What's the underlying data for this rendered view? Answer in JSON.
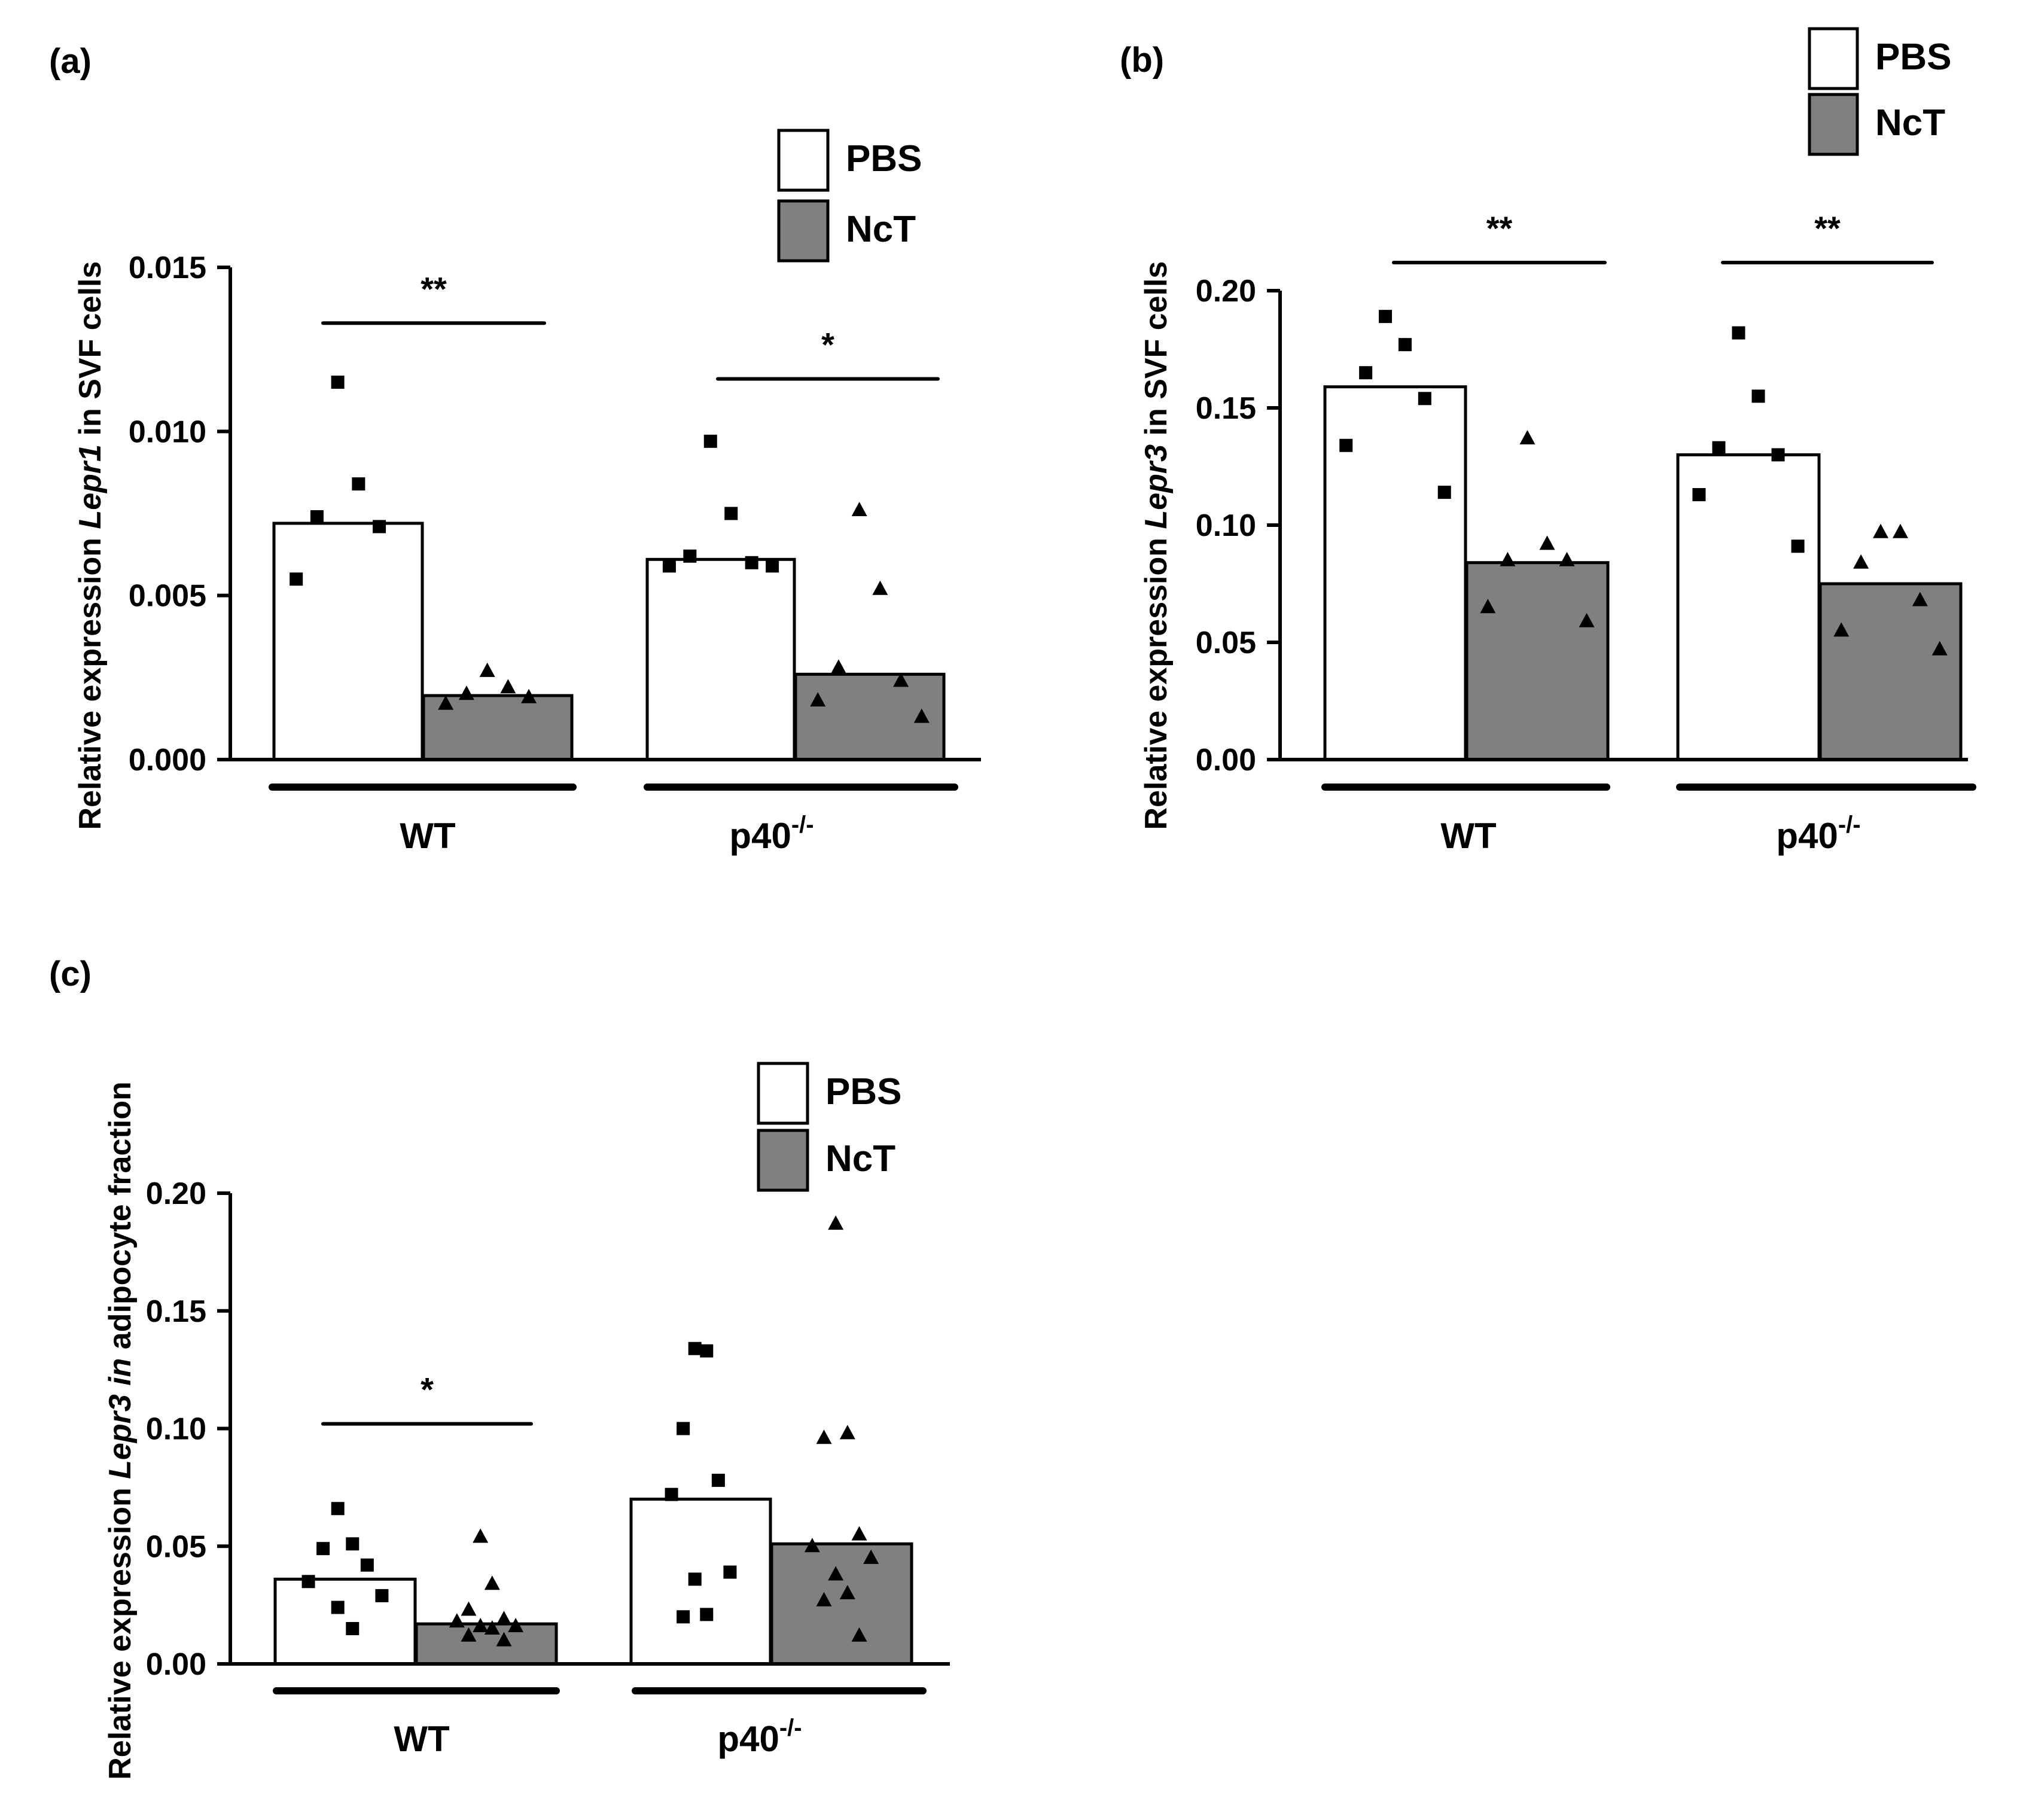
{
  "colors": {
    "PBS": "#ffffff",
    "NcT": "#808080",
    "ink": "#000000"
  },
  "legend": {
    "pbs": "PBS",
    "nct": "NcT"
  },
  "chart_data": [
    {
      "id": "a",
      "panel_label": "(a)",
      "type": "bar",
      "ylabel": {
        "prefix": "Relative expression ",
        "gene": "Lepr1",
        "suffix": " in SVF cells"
      },
      "ylim": [
        0,
        0.015
      ],
      "yticks": [
        "0.000",
        "0.005",
        "0.010",
        "0.015"
      ],
      "groups": [
        {
          "label": "WT",
          "sup": ""
        },
        {
          "label": "p40",
          "sup": "-/-"
        }
      ],
      "series": [
        {
          "name": "PBS",
          "marker": "square",
          "means": [
            0.0072,
            0.0061
          ],
          "points": [
            [
              0.0115,
              0.0084,
              0.0074,
              0.0071,
              0.0055
            ],
            [
              0.0097,
              0.0075,
              0.0062,
              0.006,
              0.0059,
              0.0059
            ]
          ]
        },
        {
          "name": "NcT",
          "marker": "triangle",
          "means": [
            0.00195,
            0.0026
          ],
          "points": [
            [
              0.0027,
              0.0022,
              0.002,
              0.0019,
              0.0017
            ],
            [
              0.0076,
              0.0052,
              0.0028,
              0.0024,
              0.0018,
              0.0013
            ]
          ]
        }
      ],
      "significance": [
        {
          "group_index": 0,
          "stars": "**",
          "y": 0.0133
        },
        {
          "group_index": 1,
          "stars": "*",
          "y": 0.0116
        }
      ]
    },
    {
      "id": "b",
      "panel_label": "(b)",
      "type": "bar",
      "ylabel": {
        "prefix": "Relative expression ",
        "gene": "Lepr3",
        "suffix": " in SVF cells"
      },
      "ylim": [
        0,
        0.2
      ],
      "yticks": [
        "0.00",
        "0.05",
        "0.10",
        "0.15",
        "0.20"
      ],
      "groups": [
        {
          "label": "WT",
          "sup": ""
        },
        {
          "label": "p40",
          "sup": "-/-"
        }
      ],
      "series": [
        {
          "name": "PBS",
          "marker": "square",
          "means": [
            0.159,
            0.13
          ],
          "points": [
            [
              0.189,
              0.177,
              0.165,
              0.154,
              0.134,
              0.114
            ],
            [
              0.182,
              0.155,
              0.133,
              0.13,
              0.113,
              0.091
            ]
          ]
        },
        {
          "name": "NcT",
          "marker": "triangle",
          "means": [
            0.084,
            0.075
          ],
          "points": [
            [
              0.137,
              0.092,
              0.085,
              0.085,
              0.065,
              0.059
            ],
            [
              0.097,
              0.097,
              0.084,
              0.068,
              0.055,
              0.047
            ]
          ]
        }
      ],
      "significance": [
        {
          "group_index": 0,
          "stars": "**",
          "y": 0.212
        },
        {
          "group_index": 1,
          "stars": "**",
          "y": 0.212
        }
      ]
    },
    {
      "id": "c",
      "panel_label": "(c)",
      "type": "bar",
      "ylabel": {
        "prefix": "Relative expression ",
        "gene": "Lepr3 in",
        "suffix": " adipocyte fraction"
      },
      "ylim": [
        0,
        0.2
      ],
      "yticks": [
        "0.00",
        "0.05",
        "0.10",
        "0.15",
        "0.20"
      ],
      "groups": [
        {
          "label": "WT",
          "sup": ""
        },
        {
          "label": "p40",
          "sup": "-/-"
        }
      ],
      "series": [
        {
          "name": "PBS",
          "marker": "square",
          "means": [
            0.036,
            0.07
          ],
          "points": [
            [
              0.066,
              0.051,
              0.049,
              0.042,
              0.035,
              0.029,
              0.024,
              0.015
            ],
            [
              0.134,
              0.133,
              0.1,
              0.078,
              0.072,
              0.039,
              0.036,
              0.021,
              0.02
            ]
          ]
        },
        {
          "name": "NcT",
          "marker": "triangle",
          "means": [
            0.017,
            0.051
          ],
          "points": [
            [
              0.054,
              0.034,
              0.023,
              0.019,
              0.018,
              0.016,
              0.016,
              0.015,
              0.012,
              0.01
            ],
            [
              0.187,
              0.098,
              0.096,
              0.055,
              0.05,
              0.045,
              0.038,
              0.03,
              0.027,
              0.012
            ]
          ]
        }
      ],
      "significance": [
        {
          "group_index": 0,
          "stars": "*",
          "y": 0.102
        }
      ]
    }
  ]
}
